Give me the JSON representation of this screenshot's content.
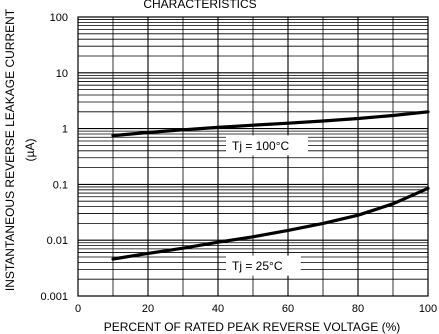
{
  "chart_data": {
    "type": "line",
    "title": "CHARACTERISTICS",
    "xlabel": "PERCENT OF RATED PEAK REVERSE VOLTAGE (%)",
    "ylabel_line1": "INSTANTANEOUS REVERSE LEAKAGE CURRENT",
    "ylabel_line2": "(µA)",
    "xlim": [
      0,
      100
    ],
    "ylim": [
      0.001,
      100
    ],
    "yscale": "log",
    "grid": true,
    "x_ticks": [
      0,
      20,
      40,
      60,
      80,
      100
    ],
    "x_tick_labels": [
      "0",
      "20",
      "40",
      "60",
      "80",
      "100"
    ],
    "y_ticks": [
      0.001,
      0.01,
      0.1,
      1,
      10,
      100
    ],
    "y_tick_labels": [
      "0.001",
      "0.01",
      "0.1",
      "1",
      "10",
      "100"
    ],
    "series": [
      {
        "x": [
          10,
          20,
          30,
          40,
          50,
          60,
          70,
          80,
          90,
          100
        ],
        "y": [
          0.75,
          0.85,
          0.95,
          1.05,
          1.15,
          1.25,
          1.37,
          1.52,
          1.72,
          2.0
        ]
      },
      {
        "x": [
          10,
          20,
          30,
          40,
          50,
          60,
          70,
          80,
          90,
          100
        ],
        "y": [
          0.0046,
          0.0058,
          0.0072,
          0.0092,
          0.0115,
          0.015,
          0.02,
          0.028,
          0.045,
          0.085
        ]
      }
    ],
    "annotations": [
      {
        "text": "Tj = 100°C",
        "x": 44,
        "y": 0.5
      },
      {
        "text": "Tj = 25°C",
        "x": 44,
        "y": 0.0035
      }
    ],
    "line_color": "#000000"
  }
}
